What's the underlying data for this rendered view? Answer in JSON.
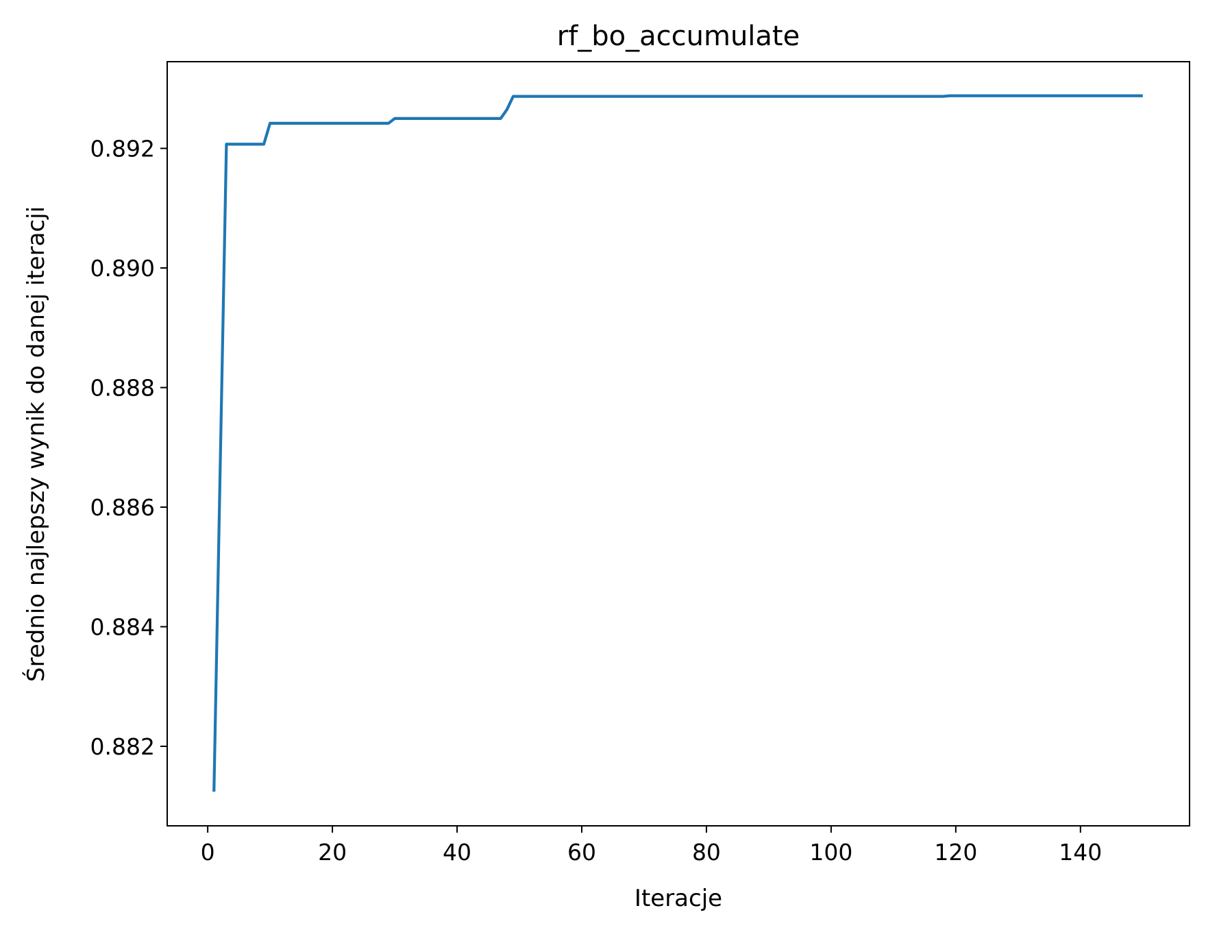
{
  "chart_data": {
    "type": "line",
    "title": "rf_bo_accumulate",
    "xlabel": "Iteracje",
    "ylabel": "Średnio najlepszy wynik do danej iteracji",
    "xlim": [
      -6.5,
      157.5
    ],
    "ylim": [
      0.88067,
      0.89345
    ],
    "xticks": [
      0,
      20,
      40,
      60,
      80,
      100,
      120,
      140
    ],
    "xtick_labels": [
      "0",
      "20",
      "40",
      "60",
      "80",
      "100",
      "120",
      "140"
    ],
    "yticks": [
      0.882,
      0.884,
      0.886,
      0.888,
      0.89,
      0.892
    ],
    "ytick_labels": [
      "0.882",
      "0.884",
      "0.886",
      "0.888",
      "0.890",
      "0.892"
    ],
    "grid": false,
    "series": [
      {
        "color": "#1f77b4",
        "x": [
          1,
          3,
          9,
          10,
          29,
          30,
          47,
          48,
          49,
          118,
          119,
          150
        ],
        "y": [
          0.88124,
          0.89207,
          0.89207,
          0.89242,
          0.89242,
          0.8925,
          0.8925,
          0.89265,
          0.89287,
          0.89287,
          0.89288,
          0.89288
        ]
      }
    ]
  }
}
